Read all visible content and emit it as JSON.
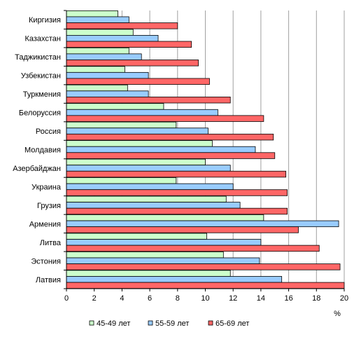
{
  "chart_data": {
    "type": "bar",
    "orientation": "horizontal",
    "x_unit": "%",
    "xlim": [
      0,
      20
    ],
    "x_ticks": [
      0,
      2,
      4,
      6,
      8,
      10,
      12,
      14,
      16,
      18,
      20
    ],
    "grid": "vertical-major",
    "legend_position": "bottom",
    "categories": [
      "Киргизия",
      "Казахстан",
      "Таджикистан",
      "Узбекистан",
      "Туркмения",
      "Белоруссия",
      "Россия",
      "Молдавия",
      "Азербайджан",
      "Украина",
      "Грузия",
      "Армения",
      "Литва",
      "Эстония",
      "Латвия"
    ],
    "series": [
      {
        "name": "45-49 лет",
        "color": "#ccffcc",
        "values": [
          3.7,
          4.8,
          4.5,
          4.2,
          4.4,
          7.0,
          7.9,
          10.5,
          10.0,
          7.9,
          11.5,
          14.2,
          10.1,
          11.3,
          11.8
        ]
      },
      {
        "name": "55-59 лет",
        "color": "#99ccff",
        "values": [
          4.5,
          6.6,
          5.4,
          5.9,
          5.9,
          10.9,
          10.2,
          13.6,
          11.8,
          12.0,
          12.5,
          19.6,
          14.0,
          13.9,
          15.5
        ]
      },
      {
        "name": "65-69 лет",
        "color": "#ff6666",
        "values": [
          8.0,
          9.0,
          9.5,
          10.3,
          11.8,
          14.2,
          14.9,
          15.0,
          15.8,
          15.9,
          15.9,
          16.7,
          18.2,
          19.7,
          20.0
        ]
      }
    ]
  }
}
